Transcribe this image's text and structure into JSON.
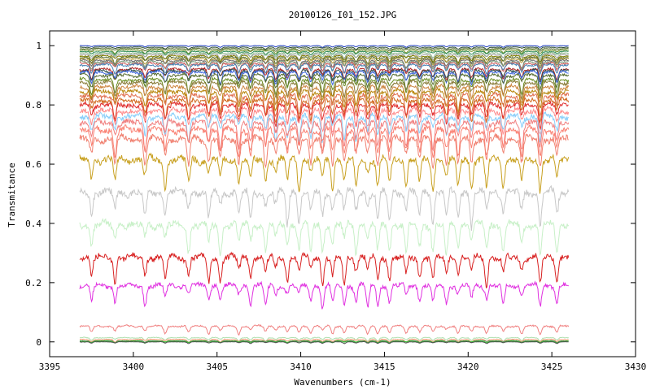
{
  "chart_data": {
    "type": "line",
    "title": "20100126_I01_152.JPG",
    "xlabel": "Wavenumbers (cm-1)",
    "ylabel": "Transmitance",
    "xlim": [
      3395,
      3430
    ],
    "ylim": [
      -0.05,
      1.05
    ],
    "x_ticks": [
      3395,
      3400,
      3405,
      3410,
      3415,
      3420,
      3425,
      3430
    ],
    "y_ticks": [
      0,
      0.2,
      0.4,
      0.6,
      0.8,
      1
    ],
    "x_tick_labels": [
      "3395",
      "3400",
      "3405",
      "3410",
      "3415",
      "3420",
      "3425",
      "3430"
    ],
    "y_tick_labels": [
      "0",
      "0.2",
      "0.4",
      "0.6",
      "0.8",
      "1"
    ],
    "grid": false,
    "legend": "none",
    "x_range_data": [
      3396.8,
      3426
    ],
    "absorption_lines_cm-1": [
      3397.5,
      3398.9,
      3400.7,
      3401.9,
      3403.3,
      3404.5,
      3405.2,
      3406.3,
      3407.0,
      3407.9,
      3408.5,
      3409.2,
      3409.9,
      3410.6,
      3411.3,
      3411.9,
      3412.6,
      3413.3,
      3414.0,
      3414.6,
      3415.3,
      3416.3,
      3417.1,
      3417.9,
      3418.7,
      3419.4,
      3420.2,
      3421.1,
      3422.1,
      3423.2,
      3424.3,
      3425.3
    ],
    "series": [
      {
        "baseline": 1.0,
        "color": "#1f3fbf"
      },
      {
        "baseline": 0.995,
        "color": "#2f4f2f"
      },
      {
        "baseline": 0.99,
        "color": "#556b2f"
      },
      {
        "baseline": 0.985,
        "color": "#6b8e23"
      },
      {
        "baseline": 0.98,
        "color": "#2e8b57"
      },
      {
        "baseline": 0.975,
        "color": "#8fbc8f"
      },
      {
        "baseline": 0.97,
        "color": "#a0a0a0"
      },
      {
        "baseline": 0.965,
        "color": "#808000"
      },
      {
        "baseline": 0.96,
        "color": "#556b2f"
      },
      {
        "baseline": 0.955,
        "color": "#b8a040"
      },
      {
        "baseline": 0.95,
        "color": "#6b6b6b"
      },
      {
        "baseline": 0.945,
        "color": "#7fa07f"
      },
      {
        "baseline": 0.94,
        "color": "#cd5c5c"
      },
      {
        "baseline": 0.935,
        "color": "#4682b4"
      },
      {
        "baseline": 0.92,
        "color": "#b22222"
      },
      {
        "baseline": 0.915,
        "color": "#2f4f4f"
      },
      {
        "baseline": 0.91,
        "color": "#4169e1"
      },
      {
        "baseline": 0.9,
        "color": "#556b2f"
      },
      {
        "baseline": 0.885,
        "color": "#6b8e23"
      },
      {
        "baseline": 0.875,
        "color": "#8b7d3b"
      },
      {
        "baseline": 0.86,
        "color": "#cd853f"
      },
      {
        "baseline": 0.845,
        "color": "#b8860b"
      },
      {
        "baseline": 0.83,
        "color": "#e07050"
      },
      {
        "baseline": 0.815,
        "color": "#d2691e"
      },
      {
        "baseline": 0.8,
        "color": "#e03030"
      },
      {
        "baseline": 0.78,
        "color": "#ff8c8c"
      },
      {
        "baseline": 0.76,
        "color": "#87cefa"
      },
      {
        "baseline": 0.74,
        "color": "#f08080"
      },
      {
        "baseline": 0.715,
        "color": "#fa8072"
      },
      {
        "baseline": 0.685,
        "color": "#f08070"
      },
      {
        "baseline": 0.615,
        "color": "#c8a020"
      },
      {
        "baseline": 0.505,
        "color": "#c8c8c8"
      },
      {
        "baseline": 0.395,
        "color": "#c8f0c8"
      },
      {
        "baseline": 0.285,
        "color": "#d82020"
      },
      {
        "baseline": 0.19,
        "color": "#e030e0"
      },
      {
        "baseline": 0.053,
        "color": "#f08080"
      },
      {
        "baseline": 0.014,
        "color": "#b0e0b0"
      },
      {
        "baseline": 0.008,
        "color": "#ffa07a"
      },
      {
        "baseline": 0.004,
        "color": "#5a8a5a"
      },
      {
        "baseline": 0.002,
        "color": "#30c030"
      },
      {
        "baseline": 0.0,
        "color": "#505050"
      }
    ]
  }
}
